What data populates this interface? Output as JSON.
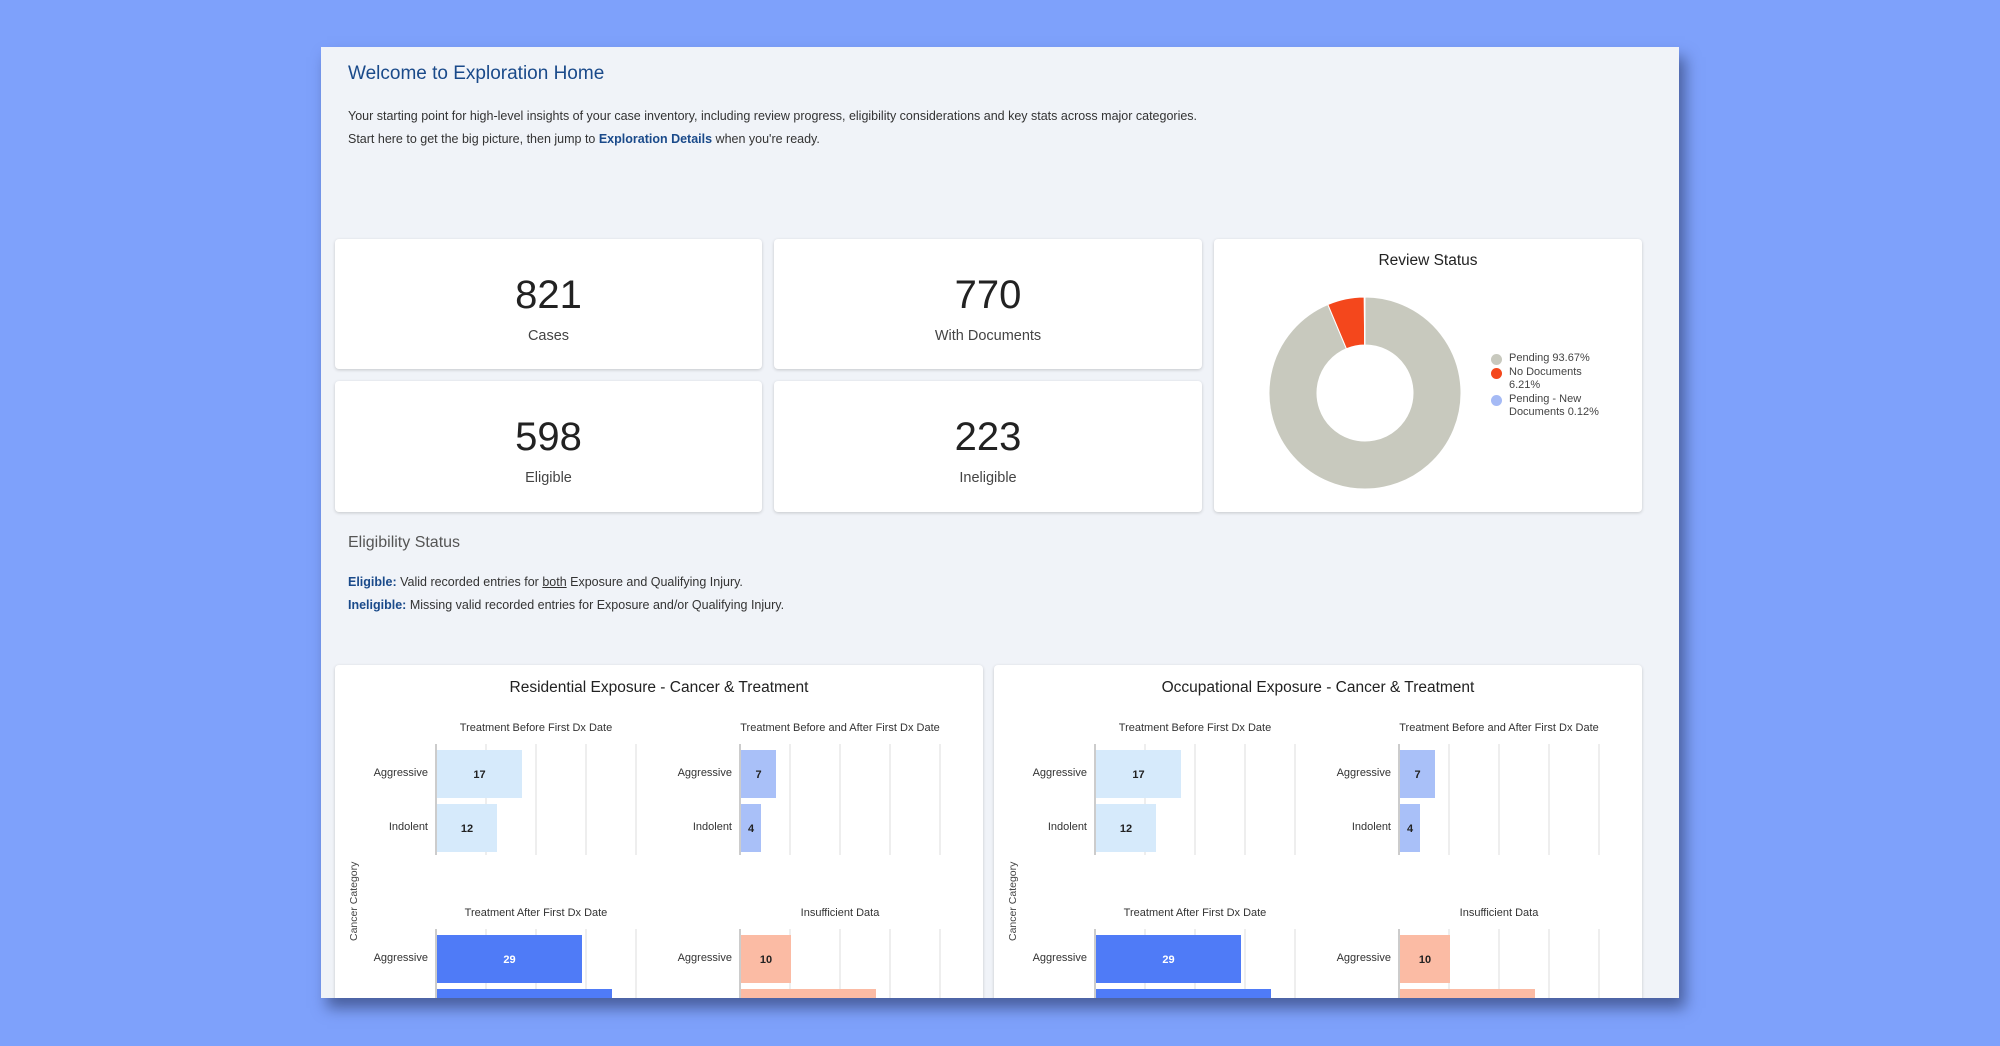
{
  "header": {
    "title": "Welcome to Exploration Home",
    "intro_line1": "Your starting point for high-level insights of your case inventory, including review progress, eligibility considerations and key stats across major categories.",
    "intro_line2_prefix": "Start here to get the big picture, then jump to ",
    "intro_link": "Exploration Details",
    "intro_line2_suffix": " when you're ready."
  },
  "kpis": {
    "cases": {
      "value": "821",
      "label": "Cases"
    },
    "with_documents": {
      "value": "770",
      "label": "With Documents"
    },
    "eligible": {
      "value": "598",
      "label": "Eligible"
    },
    "ineligible": {
      "value": "223",
      "label": "Ineligible"
    }
  },
  "review_status": {
    "title": "Review Status",
    "legend": [
      {
        "label": "Pending 93.67%",
        "color": "#c8c9be"
      },
      {
        "label": "No Documents 6.21%",
        "color": "#f4471c"
      },
      {
        "label": "Pending - New Documents 0.12%",
        "color": "#a5baf5"
      }
    ]
  },
  "eligibility": {
    "title": "Eligibility Status",
    "eligible_term": "Eligible:",
    "eligible_pre": " Valid recorded entries for ",
    "eligible_emph": "both",
    "eligible_post": " Exposure and Qualifying Injury.",
    "ineligible_term": "Ineligible:",
    "ineligible_text": " Missing valid recorded entries for Exposure and/or Qualifying Injury."
  },
  "chart_data": [
    {
      "type": "pie",
      "title": "Review Status",
      "categories": [
        "Pending",
        "No Documents",
        "Pending - New Documents"
      ],
      "values": [
        93.67,
        6.21,
        0.12
      ],
      "colors": [
        "#c8c9be",
        "#f4471c",
        "#a5baf5"
      ],
      "donut": true,
      "legend_position": "right"
    },
    {
      "type": "bar",
      "orientation": "horizontal",
      "title": "Residential Exposure - Cancer & Treatment",
      "ylabel": "Cancer Category",
      "panels": [
        {
          "title": "Treatment Before First Dx Date",
          "categories": [
            "Aggressive",
            "Indolent"
          ],
          "values": [
            17,
            12
          ],
          "color": "#d6eafb"
        },
        {
          "title": "Treatment Before and After First Dx Date",
          "categories": [
            "Aggressive",
            "Indolent"
          ],
          "values": [
            7,
            4
          ],
          "color": "#a9c0f8"
        },
        {
          "title": "Treatment After First Dx Date",
          "categories": [
            "Aggressive"
          ],
          "values": [
            29
          ],
          "color": "#4f7bf7"
        },
        {
          "title": "Insufficient Data",
          "categories": [
            "Aggressive"
          ],
          "values": [
            10
          ],
          "color": "#fbbba4"
        }
      ]
    },
    {
      "type": "bar",
      "orientation": "horizontal",
      "title": "Occupational Exposure - Cancer & Treatment",
      "ylabel": "Cancer Category",
      "panels": [
        {
          "title": "Treatment Before First Dx Date",
          "categories": [
            "Aggressive",
            "Indolent"
          ],
          "values": [
            17,
            12
          ],
          "color": "#d6eafb"
        },
        {
          "title": "Treatment Before and After First Dx Date",
          "categories": [
            "Aggressive",
            "Indolent"
          ],
          "values": [
            7,
            4
          ],
          "color": "#a9c0f8"
        },
        {
          "title": "Treatment After First Dx Date",
          "categories": [
            "Aggressive"
          ],
          "values": [
            29
          ],
          "color": "#4f7bf7"
        },
        {
          "title": "Insufficient Data",
          "categories": [
            "Aggressive"
          ],
          "values": [
            10
          ],
          "color": "#fbbba4"
        }
      ]
    }
  ]
}
